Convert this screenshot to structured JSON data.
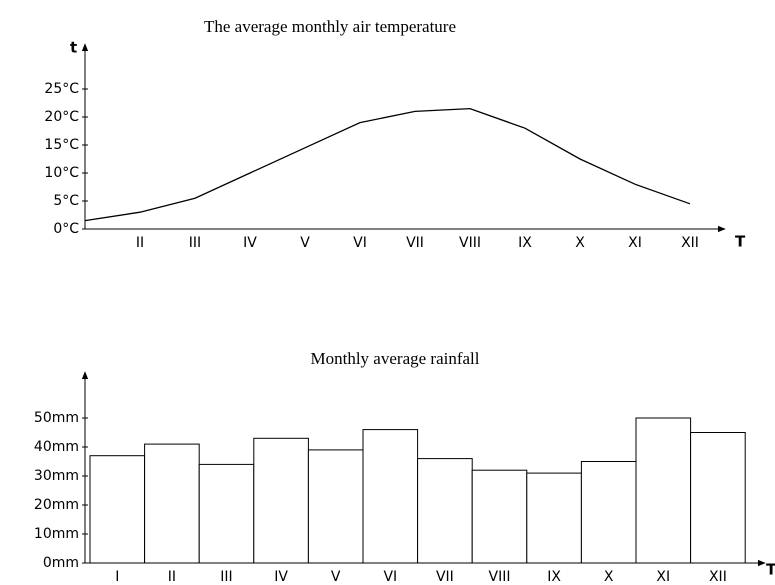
{
  "chart_data": [
    {
      "type": "line",
      "title": "The average monthly air temperature",
      "y_label": "t",
      "x_label": "T",
      "categories": [
        null,
        "II",
        "III",
        "IV",
        "V",
        "VI",
        "VII",
        "VIII",
        "IX",
        "X",
        "XI",
        "XII"
      ],
      "series": [
        {
          "name": "Temperature",
          "color": "#000000",
          "values": [
            1.5,
            3,
            5.5,
            10,
            14.5,
            19,
            21,
            21.5,
            18,
            12.5,
            8,
            4.5
          ]
        }
      ],
      "ylim": [
        0,
        25
      ],
      "yticks": [
        {
          "value": 0,
          "label": "0°C"
        },
        {
          "value": 5,
          "label": "5°C"
        },
        {
          "value": 10,
          "label": "10°C"
        },
        {
          "value": 15,
          "label": "15°C"
        },
        {
          "value": 20,
          "label": "20°C"
        },
        {
          "value": 25,
          "label": "25°C"
        }
      ],
      "grid": false
    },
    {
      "type": "bar",
      "title": "Monthly average rainfall",
      "x_label": "T",
      "categories": [
        "I",
        "II",
        "III",
        "IV",
        "V",
        "VI",
        "VII",
        "VIII",
        "IX",
        "X",
        "XI",
        "XII"
      ],
      "values": [
        37,
        41,
        34,
        43,
        39,
        46,
        36,
        32,
        31,
        35,
        50,
        45
      ],
      "color": "#ffffff",
      "ylim": [
        0,
        50
      ],
      "yticks": [
        {
          "value": 0,
          "label": "0mm"
        },
        {
          "value": 10,
          "label": "10mm"
        },
        {
          "value": 20,
          "label": "20mm"
        },
        {
          "value": 30,
          "label": "30mm"
        },
        {
          "value": 40,
          "label": "40mm"
        },
        {
          "value": 50,
          "label": "50mm"
        }
      ],
      "grid": false
    }
  ]
}
